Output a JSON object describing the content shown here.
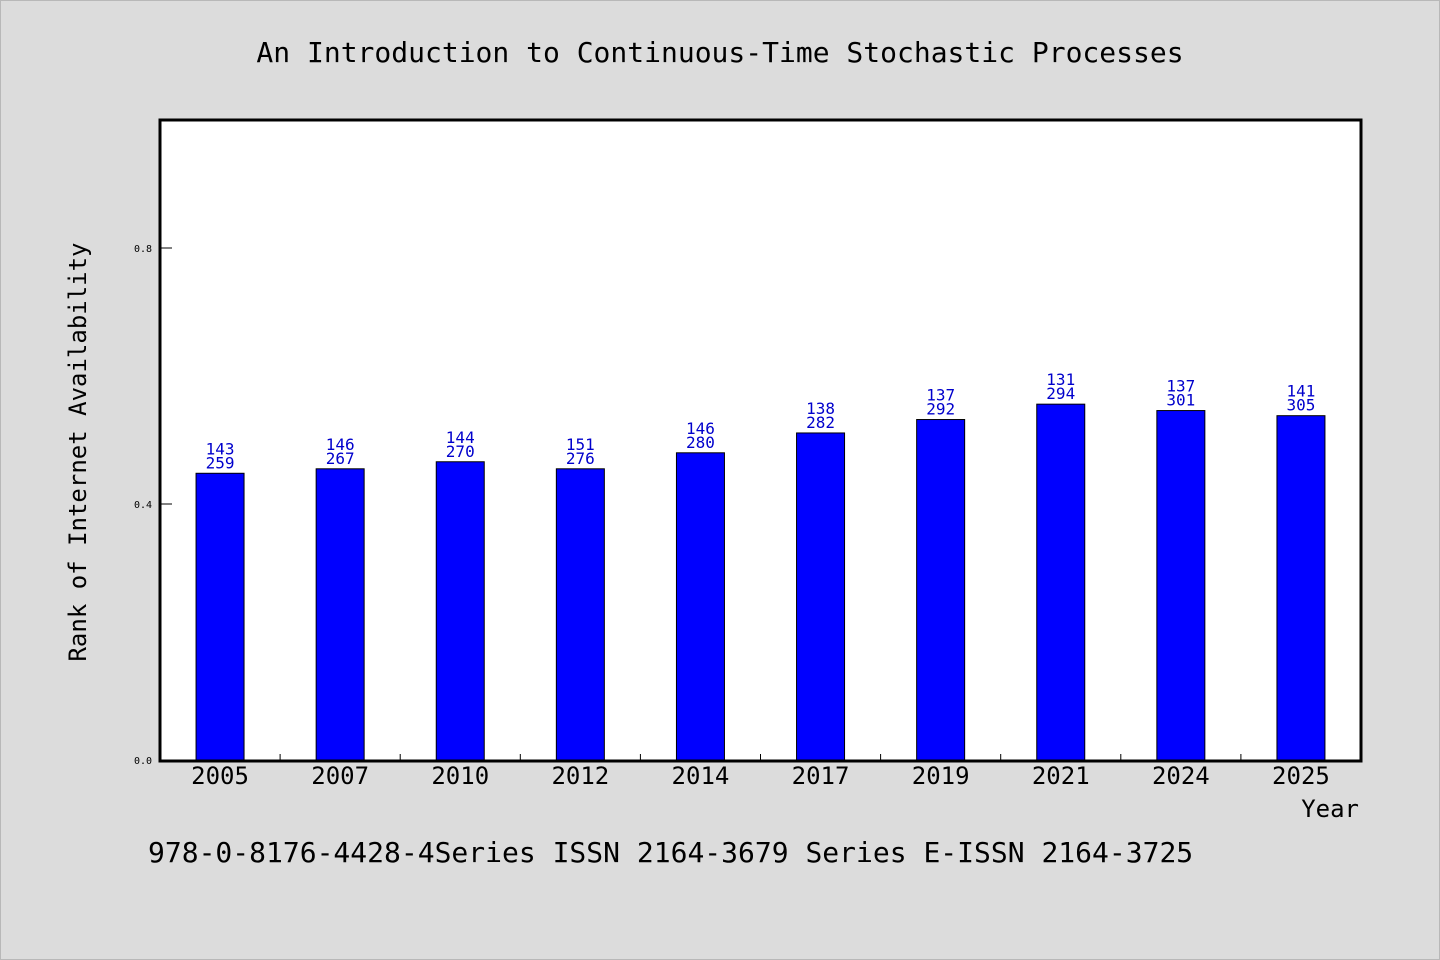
{
  "chart_data": {
    "type": "bar",
    "title": "An Introduction to Continuous-Time Stochastic Processes",
    "xlabel": "Year",
    "ylabel": "Rank of Internet Availability",
    "footer": "978-0-8176-4428-4Series ISSN 2164-3679 Series E-ISSN 2164-3725",
    "categories": [
      "2005",
      "2007",
      "2010",
      "2012",
      "2014",
      "2017",
      "2019",
      "2021",
      "2024",
      "2025"
    ],
    "values": [
      0.448,
      0.455,
      0.466,
      0.455,
      0.48,
      0.511,
      0.532,
      0.556,
      0.546,
      0.538
    ],
    "label_top": [
      "143",
      "146",
      "144",
      "151",
      "146",
      "138",
      "137",
      "131",
      "137",
      "141"
    ],
    "label_bottom": [
      "259",
      "267",
      "270",
      "276",
      "280",
      "282",
      "292",
      "294",
      "301",
      "305"
    ],
    "yticks": [
      "0.0",
      "0.4",
      "0.8"
    ],
    "ylim": [
      0,
      1.0
    ],
    "grid": false,
    "legend": "none",
    "colors": {
      "bar": "#0000ff",
      "bar_stroke": "#000000",
      "data_label": "#0000cc",
      "plot_bg": "#ffffff",
      "page_bg": "#dcdcdc",
      "text": "#000000"
    }
  }
}
